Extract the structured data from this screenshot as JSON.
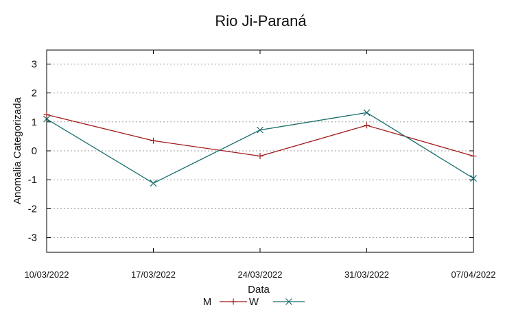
{
  "chart_data": {
    "type": "line",
    "title": "Rio Ji-Paraná",
    "xlabel": "Data",
    "ylabel": "Anomalia Categorizada",
    "categories": [
      "10/03/2022",
      "17/03/2022",
      "24/03/2022",
      "31/03/2022",
      "07/04/2022"
    ],
    "yticks": [
      3,
      2,
      1,
      0,
      -1,
      -2,
      -3
    ],
    "ylim": [
      -3.5,
      3.5
    ],
    "grid": "horizontal-dotted",
    "legend_position": "bottom",
    "series": [
      {
        "name": "M",
        "color": "#a11a1a",
        "marker": "plus",
        "values": [
          1.25,
          0.35,
          -0.18,
          0.88,
          -0.18
        ]
      },
      {
        "name": "W",
        "color": "#1a6e6e",
        "marker": "cross",
        "values": [
          1.1,
          -1.12,
          0.72,
          1.32,
          -0.95
        ]
      }
    ]
  }
}
